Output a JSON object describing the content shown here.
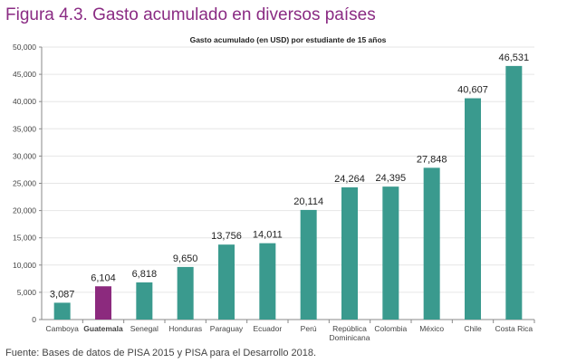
{
  "figure_title": "Figura 4.3. Gasto acumulado en diversos países",
  "source": "Fuente: Bases de datos de PISA 2015 y PISA para el Desarrollo 2018.",
  "colors": {
    "bar": "#3a9a8e",
    "highlight": "#8c2a7e",
    "title": "#8a2b83",
    "axis": "#888888",
    "grid": "#e6e6e6"
  },
  "chart_data": {
    "type": "bar",
    "title": "Gasto acumulado (en USD) por estudiante de 15 años",
    "xlabel": "",
    "ylabel": "",
    "ylim": [
      0,
      50000
    ],
    "yticks": [
      "0",
      "5,000",
      "10,000",
      "15,000",
      "20,000",
      "25,000",
      "30,000",
      "35,000",
      "40,000",
      "45,000",
      "50,000"
    ],
    "categories": [
      "Camboya",
      "Guatemala",
      "Senegal",
      "Honduras",
      "Paraguay",
      "Ecuador",
      "Perú",
      "República Dominicana",
      "Colombia",
      "México",
      "Chile",
      "Costa Rica"
    ],
    "category_lines": [
      [
        "Camboya"
      ],
      [
        "Guatemala"
      ],
      [
        "Senegal"
      ],
      [
        "Honduras"
      ],
      [
        "Paraguay"
      ],
      [
        "Ecuador"
      ],
      [
        "Perú"
      ],
      [
        "República",
        "Dominicana"
      ],
      [
        "Colombia"
      ],
      [
        "México"
      ],
      [
        "Chile"
      ],
      [
        "Costa Rica"
      ]
    ],
    "values": [
      3087,
      6104,
      6818,
      9650,
      13756,
      14011,
      20114,
      24264,
      24395,
      27848,
      40607,
      46531
    ],
    "value_labels": [
      "3,087",
      "6,104",
      "6,818",
      "9,650",
      "13,756",
      "14,011",
      "20,114",
      "24,264",
      "24,395",
      "27,848",
      "40,607",
      "46,531"
    ],
    "highlight": "Guatemala",
    "grid": true
  }
}
